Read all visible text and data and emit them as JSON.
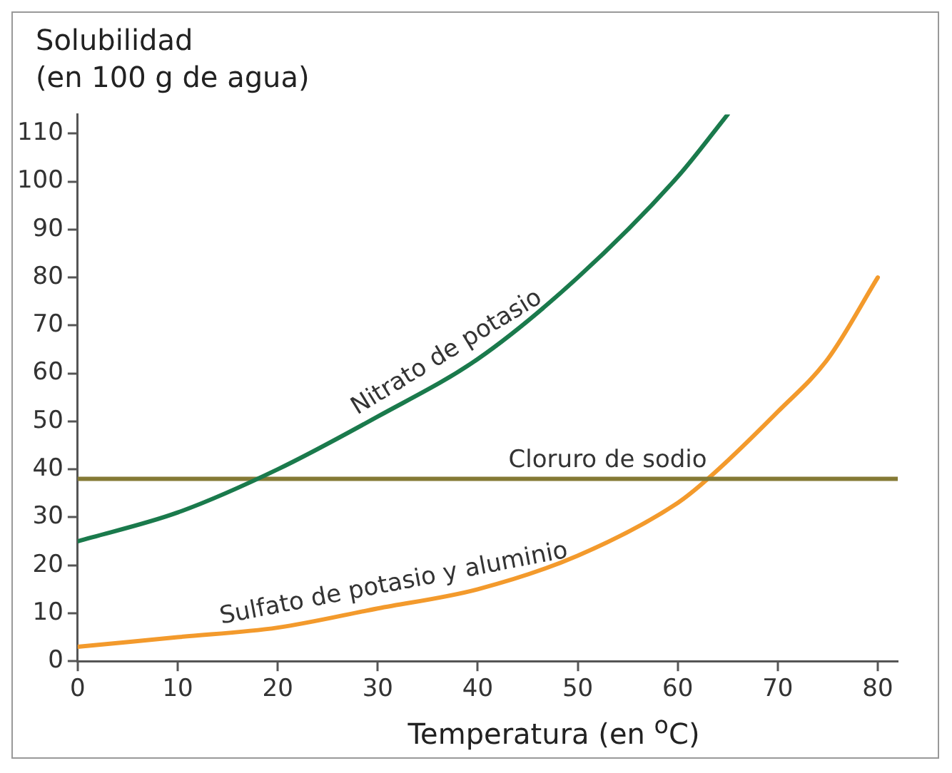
{
  "chart_data": {
    "type": "line",
    "ylabel": "Solubilidad\n(en 100 g de agua)",
    "xlabel": "Temperatura (en $^{o}$C)",
    "series": [
      {
        "name": "Nitrato de potasio",
        "color": "#1a7a4c",
        "x": [
          0,
          10,
          20,
          30,
          40,
          50,
          60,
          65
        ],
        "values": [
          25,
          31,
          40,
          51,
          63,
          80,
          101,
          114
        ]
      },
      {
        "name": "Cloruro de sodio",
        "color": "#857a35",
        "x": [
          0,
          82
        ],
        "values": [
          38,
          38
        ]
      },
      {
        "name": "Sulfato de potasio y aluminio",
        "color": "#f39a2c",
        "x": [
          0,
          10,
          20,
          30,
          40,
          50,
          60,
          63,
          70,
          75,
          80
        ],
        "values": [
          3,
          5,
          7,
          11,
          15,
          22,
          33,
          38,
          52,
          63,
          80
        ]
      }
    ],
    "xlim": [
      0,
      82
    ],
    "xticks": [
      0,
      10,
      20,
      30,
      40,
      50,
      60,
      70,
      80
    ],
    "ylim": [
      0,
      114
    ],
    "yticks": [
      0,
      10,
      20,
      30,
      40,
      50,
      60,
      70,
      80,
      90,
      100,
      110
    ],
    "grid": false,
    "legend": false,
    "marker": "none",
    "line_style": "solid"
  }
}
